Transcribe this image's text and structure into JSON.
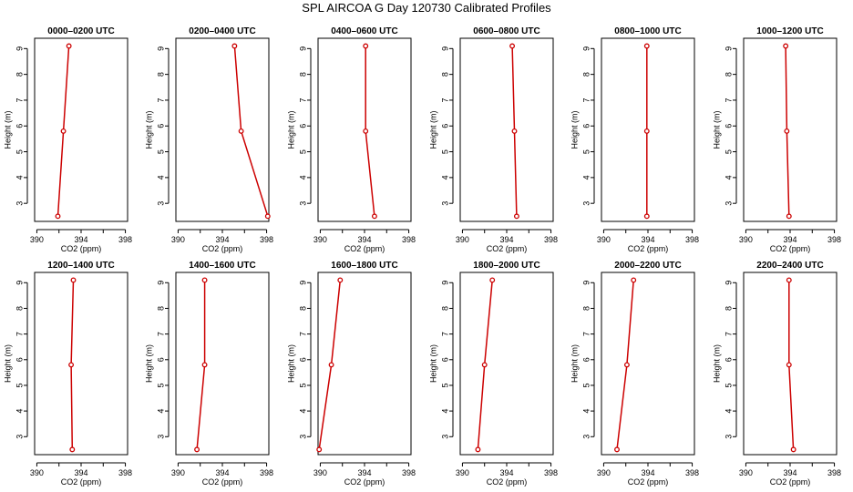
{
  "figure": {
    "title": "SPL AIRCOA G  Day 120730  Calibrated Profiles"
  },
  "colors": {
    "series": "#cc0000",
    "axes": "#000000"
  },
  "chart_data": [
    {
      "type": "line",
      "title": "0000–0200 UTC",
      "xlabel": "CO2 (ppm)",
      "ylabel": "Height (m)",
      "xlim": [
        389.8,
        398.2
      ],
      "ylim": [
        2.3,
        9.4
      ],
      "xticks": [
        390,
        394,
        398
      ],
      "yticks": [
        3,
        4,
        5,
        6,
        7,
        8,
        9
      ],
      "grid": false,
      "x": [
        391.9,
        392.4,
        392.9
      ],
      "y": [
        2.5,
        5.8,
        9.1
      ]
    },
    {
      "type": "line",
      "title": "0200–0400 UTC",
      "xlabel": "CO2 (ppm)",
      "ylabel": "Height (m)",
      "xlim": [
        389.8,
        398.2
      ],
      "ylim": [
        2.3,
        9.4
      ],
      "xticks": [
        390,
        394,
        398
      ],
      "yticks": [
        3,
        4,
        5,
        6,
        7,
        8,
        9
      ],
      "grid": false,
      "x": [
        398.1,
        395.7,
        395.1
      ],
      "y": [
        2.5,
        5.8,
        9.1
      ]
    },
    {
      "type": "line",
      "title": "0400–0600 UTC",
      "xlabel": "CO2 (ppm)",
      "ylabel": "Height (m)",
      "xlim": [
        389.8,
        398.2
      ],
      "ylim": [
        2.3,
        9.4
      ],
      "xticks": [
        390,
        394,
        398
      ],
      "yticks": [
        3,
        4,
        5,
        6,
        7,
        8,
        9
      ],
      "grid": false,
      "x": [
        394.9,
        394.1,
        394.1
      ],
      "y": [
        2.5,
        5.8,
        9.1
      ]
    },
    {
      "type": "line",
      "title": "0600–0800 UTC",
      "xlabel": "CO2 (ppm)",
      "ylabel": "Height (m)",
      "xlim": [
        389.8,
        398.2
      ],
      "ylim": [
        2.3,
        9.4
      ],
      "xticks": [
        390,
        394,
        398
      ],
      "yticks": [
        3,
        4,
        5,
        6,
        7,
        8,
        9
      ],
      "grid": false,
      "x": [
        394.9,
        394.7,
        394.5
      ],
      "y": [
        2.5,
        5.8,
        9.1
      ]
    },
    {
      "type": "line",
      "title": "0800–1000 UTC",
      "xlabel": "CO2 (ppm)",
      "ylabel": "Height (m)",
      "xlim": [
        389.8,
        398.2
      ],
      "ylim": [
        2.3,
        9.4
      ],
      "xticks": [
        390,
        394,
        398
      ],
      "yticks": [
        3,
        4,
        5,
        6,
        7,
        8,
        9
      ],
      "grid": false,
      "x": [
        393.9,
        393.9,
        393.9
      ],
      "y": [
        2.5,
        5.8,
        9.1
      ]
    },
    {
      "type": "line",
      "title": "1000–1200 UTC",
      "xlabel": "CO2 (ppm)",
      "ylabel": "Height (m)",
      "xlim": [
        389.8,
        398.2
      ],
      "ylim": [
        2.3,
        9.4
      ],
      "xticks": [
        390,
        394,
        398
      ],
      "yticks": [
        3,
        4,
        5,
        6,
        7,
        8,
        9
      ],
      "grid": false,
      "x": [
        393.9,
        393.7,
        393.6
      ],
      "y": [
        2.5,
        5.8,
        9.1
      ]
    },
    {
      "type": "line",
      "title": "1200–1400 UTC",
      "xlabel": "CO2 (ppm)",
      "ylabel": "Height (m)",
      "xlim": [
        389.8,
        398.2
      ],
      "ylim": [
        2.3,
        9.4
      ],
      "xticks": [
        390,
        394,
        398
      ],
      "yticks": [
        3,
        4,
        5,
        6,
        7,
        8,
        9
      ],
      "grid": false,
      "x": [
        393.2,
        393.1,
        393.3
      ],
      "y": [
        2.5,
        5.8,
        9.1
      ]
    },
    {
      "type": "line",
      "title": "1400–1600 UTC",
      "xlabel": "CO2 (ppm)",
      "ylabel": "Height (m)",
      "xlim": [
        389.8,
        398.2
      ],
      "ylim": [
        2.3,
        9.4
      ],
      "xticks": [
        390,
        394,
        398
      ],
      "yticks": [
        3,
        4,
        5,
        6,
        7,
        8,
        9
      ],
      "grid": false,
      "x": [
        391.7,
        392.4,
        392.4
      ],
      "y": [
        2.5,
        5.8,
        9.1
      ]
    },
    {
      "type": "line",
      "title": "1600–1800 UTC",
      "xlabel": "CO2 (ppm)",
      "ylabel": "Height (m)",
      "xlim": [
        389.8,
        398.2
      ],
      "ylim": [
        2.3,
        9.4
      ],
      "xticks": [
        390,
        394,
        398
      ],
      "yticks": [
        3,
        4,
        5,
        6,
        7,
        8,
        9
      ],
      "grid": false,
      "x": [
        389.9,
        391.0,
        391.8
      ],
      "y": [
        2.5,
        5.8,
        9.1
      ]
    },
    {
      "type": "line",
      "title": "1800–2000 UTC",
      "xlabel": "CO2 (ppm)",
      "ylabel": "Height (m)",
      "xlim": [
        389.8,
        398.2
      ],
      "ylim": [
        2.3,
        9.4
      ],
      "xticks": [
        390,
        394,
        398
      ],
      "yticks": [
        3,
        4,
        5,
        6,
        7,
        8,
        9
      ],
      "grid": false,
      "x": [
        391.4,
        392.0,
        392.7
      ],
      "y": [
        2.5,
        5.8,
        9.1
      ]
    },
    {
      "type": "line",
      "title": "2000–2200 UTC",
      "xlabel": "CO2 (ppm)",
      "ylabel": "Height (m)",
      "xlim": [
        389.8,
        398.2
      ],
      "ylim": [
        2.3,
        9.4
      ],
      "xticks": [
        390,
        394,
        398
      ],
      "yticks": [
        3,
        4,
        5,
        6,
        7,
        8,
        9
      ],
      "grid": false,
      "x": [
        391.2,
        392.1,
        392.7
      ],
      "y": [
        2.5,
        5.8,
        9.1
      ]
    },
    {
      "type": "line",
      "title": "2200–2400 UTC",
      "xlabel": "CO2 (ppm)",
      "ylabel": "Height (m)",
      "xlim": [
        389.8,
        398.2
      ],
      "ylim": [
        2.3,
        9.4
      ],
      "xticks": [
        390,
        394,
        398
      ],
      "yticks": [
        3,
        4,
        5,
        6,
        7,
        8,
        9
      ],
      "grid": false,
      "x": [
        394.3,
        393.9,
        393.9
      ],
      "y": [
        2.5,
        5.8,
        9.1
      ]
    }
  ]
}
